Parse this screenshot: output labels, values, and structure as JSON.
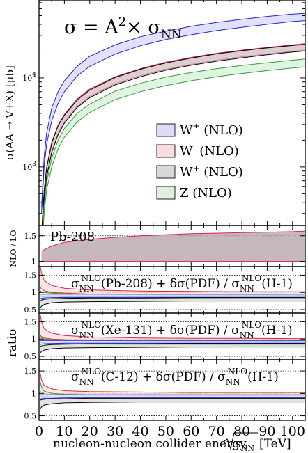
{
  "chart_data": [
    {
      "type": "area",
      "title": "σ = A²× σNN",
      "title_main": "σ = A",
      "title_sup": "2",
      "title_rest": "× σ",
      "title_sub": "NN",
      "ylabel": "σ(AA → V+X) [μb]",
      "yscale": "log",
      "ylim": [
        220,
        75000
      ],
      "xlim": [
        0,
        105
      ],
      "yticks": [
        {
          "label": "10",
          "exp": "3",
          "value": 1000
        },
        {
          "label": "10",
          "exp": "4",
          "value": 10000
        }
      ],
      "legend": {
        "position": "center-right",
        "entries": [
          {
            "label": "W± (NLO)",
            "base": "W",
            "sup": "±",
            "rest": " (NLO)",
            "fill": "#dcdcfa",
            "stroke": "#2020e0"
          },
          {
            "label": "W- (NLO)",
            "base": "W",
            "sup": "-",
            "rest": " (NLO)",
            "fill": "#fadcdc",
            "stroke": "#e02040"
          },
          {
            "label": "W+ (NLO)",
            "base": "W",
            "sup": "+",
            "rest": " (NLO)",
            "fill": "#d8d8d8",
            "stroke": "#000000"
          },
          {
            "label": "Z (NLO)",
            "base": "Z",
            "sup": "",
            "rest": " (NLO)",
            "fill": "#dcf2dc",
            "stroke": "#30a030"
          }
        ]
      },
      "series": [
        {
          "name": "W± (NLO)",
          "fill": "#dcdcfa",
          "stroke": "#2020e0",
          "fill_opacity": 0.85,
          "x": [
            1,
            2,
            3,
            5,
            7.5,
            10,
            15,
            20,
            30,
            40,
            50,
            60,
            70,
            80,
            90,
            100,
            105
          ],
          "lower": [
            300,
            1000,
            1800,
            3300,
            5200,
            7000,
            10500,
            13500,
            18500,
            23000,
            27000,
            30500,
            34000,
            37000,
            40000,
            43000,
            44000
          ],
          "upper": [
            350,
            1300,
            2400,
            4600,
            7000,
            9300,
            13500,
            17500,
            23500,
            29000,
            33500,
            38000,
            42000,
            45500,
            49000,
            52000,
            53000
          ]
        },
        {
          "name": "W- (NLO)",
          "fill": "#f0d0d6",
          "stroke": "#e02040",
          "fill_opacity": 0.85,
          "x": [
            1,
            2,
            3,
            5,
            7.5,
            10,
            15,
            20,
            30,
            40,
            50,
            60,
            70,
            80,
            90,
            100,
            105
          ],
          "lower": [
            150,
            450,
            800,
            1500,
            2400,
            3200,
            4800,
            6200,
            8600,
            10600,
            12500,
            14200,
            15800,
            17200,
            18600,
            19900,
            20500
          ],
          "upper": [
            180,
            550,
            1000,
            1900,
            2950,
            3900,
            5800,
            7500,
            10300,
            12700,
            15000,
            17000,
            18900,
            20500,
            22000,
            23500,
            24200
          ]
        },
        {
          "name": "W+ (NLO)",
          "fill": "#c8c8c8",
          "stroke": "#000000",
          "fill_opacity": 0.55,
          "x": [
            1,
            2,
            3,
            5,
            7.5,
            10,
            15,
            20,
            30,
            40,
            50,
            60,
            70,
            80,
            90,
            100,
            105
          ],
          "lower": [
            140,
            430,
            770,
            1450,
            2300,
            3100,
            4650,
            6000,
            8350,
            10300,
            12200,
            13900,
            15400,
            16800,
            18200,
            19500,
            20100
          ],
          "upper": [
            170,
            530,
            970,
            1850,
            2900,
            3800,
            5650,
            7300,
            10100,
            12500,
            14700,
            16700,
            18600,
            20200,
            21700,
            23100,
            23800
          ]
        },
        {
          "name": "Z (NLO)",
          "fill": "#dcf2dc",
          "stroke": "#30a030",
          "fill_opacity": 0.85,
          "x": [
            1,
            2,
            3,
            5,
            7.5,
            10,
            15,
            20,
            30,
            40,
            50,
            60,
            70,
            80,
            90,
            100,
            105
          ],
          "lower": [
            100,
            300,
            550,
            1000,
            1600,
            2150,
            3200,
            4100,
            5700,
            7000,
            8200,
            9300,
            10300,
            11200,
            12100,
            12900,
            13300
          ],
          "upper": [
            125,
            380,
            680,
            1250,
            2000,
            2700,
            4000,
            5100,
            7100,
            8700,
            10200,
            11500,
            12700,
            13800,
            14800,
            15800,
            16300
          ]
        }
      ]
    },
    {
      "type": "area",
      "label": "Pb-208",
      "ylabel": "NLO / LO",
      "ylim": [
        0.9,
        1.7
      ],
      "yticks": [
        {
          "label": "1",
          "value": 1
        },
        {
          "label": "1.5",
          "value": 1.5
        }
      ],
      "dotted_lines": [
        1.0,
        1.5
      ],
      "series": [
        {
          "name": "band",
          "fill": "#b0a0a8",
          "stroke": "#e02040",
          "x": [
            1,
            5,
            10,
            20,
            30,
            40,
            50,
            60,
            70,
            80,
            90,
            100,
            105
          ],
          "lower": [
            1.0,
            1.0,
            1.0,
            1.0,
            1.0,
            1.0,
            1.0,
            1.0,
            1.0,
            1.0,
            1.0,
            1.0,
            1.0
          ],
          "upper": [
            1.2,
            1.3,
            1.37,
            1.43,
            1.47,
            1.5,
            1.52,
            1.54,
            1.55,
            1.56,
            1.57,
            1.58,
            1.59
          ]
        }
      ]
    },
    {
      "type": "line",
      "label": "σNNNLO(Pb-208) + δσ(PDF) / σNNNLO(H-1)",
      "label_parts": {
        "nucleus": "(Pb-208)",
        "mid": " + δσ(PDF) / σ",
        "end": "(H-1)"
      },
      "ylabel": "ratio",
      "ylim": [
        0.4,
        1.75
      ],
      "yticks": [
        {
          "label": "0.5",
          "value": 0.5
        },
        {
          "label": "1",
          "value": 1
        },
        {
          "label": "1.5",
          "value": 1.5
        }
      ],
      "dotted_lines": [
        0.5,
        1.0,
        1.5
      ],
      "series": [
        {
          "name": "W-",
          "stroke": "#e02040",
          "fill": "#fadcdc",
          "x": [
            0.5,
            1,
            2,
            5,
            10,
            20,
            40,
            60,
            80,
            105
          ],
          "lower": [
            1.15,
            1.1,
            1.05,
            1.0,
            0.98,
            0.95,
            0.93,
            0.92,
            0.91,
            0.9
          ],
          "upper": [
            1.75,
            1.55,
            1.35,
            1.2,
            1.12,
            1.07,
            1.04,
            1.03,
            1.02,
            1.02
          ]
        },
        {
          "name": "Z",
          "stroke": "#30a030",
          "fill": "#dcf2dc",
          "x": [
            0.5,
            1,
            2,
            5,
            10,
            20,
            40,
            60,
            80,
            105
          ],
          "lower": [
            0.9,
            0.88,
            0.87,
            0.86,
            0.85,
            0.84,
            0.83,
            0.83,
            0.82,
            0.82
          ],
          "upper": [
            1.05,
            1.02,
            1.0,
            0.98,
            0.96,
            0.95,
            0.94,
            0.93,
            0.93,
            0.92
          ]
        },
        {
          "name": "W±",
          "stroke": "#2020e0",
          "fill": "#dcdcfa",
          "x": [
            0.5,
            1,
            2,
            5,
            10,
            20,
            40,
            60,
            80,
            105
          ],
          "lower": [
            0.82,
            0.83,
            0.84,
            0.85,
            0.86,
            0.86,
            0.86,
            0.86,
            0.86,
            0.86
          ],
          "upper": [
            0.95,
            0.95,
            0.95,
            0.95,
            0.95,
            0.95,
            0.95,
            0.95,
            0.95,
            0.95
          ]
        },
        {
          "name": "W+",
          "stroke": "#000000",
          "fill": "#d8d8d8",
          "x": [
            0.5,
            1,
            2,
            5,
            10,
            20,
            40,
            60,
            80,
            105
          ],
          "lower": [
            0.55,
            0.6,
            0.65,
            0.7,
            0.72,
            0.73,
            0.74,
            0.75,
            0.75,
            0.75
          ],
          "upper": [
            0.75,
            0.78,
            0.8,
            0.82,
            0.83,
            0.84,
            0.84,
            0.85,
            0.85,
            0.85
          ]
        }
      ]
    },
    {
      "type": "line",
      "label": "σNNNLO(Xe-131) + δσ(PDF) / σNNNLO(H-1)",
      "label_parts": {
        "nucleus": "(Xe-131)",
        "mid": " + δσ(PDF) / σ",
        "end": "(H-1)"
      },
      "ylabel": "ratio",
      "ylim": [
        0.4,
        1.75
      ],
      "yticks": [
        {
          "label": "0.5",
          "value": 0.5
        },
        {
          "label": "1",
          "value": 1
        },
        {
          "label": "1.5",
          "value": 1.5
        }
      ],
      "dotted_lines": [
        0.5,
        1.0,
        1.5
      ],
      "series": [
        {
          "name": "W-",
          "stroke": "#e02040",
          "fill": "#fadcdc",
          "x": [
            0.5,
            1,
            2,
            5,
            10,
            20,
            40,
            60,
            80,
            105
          ],
          "lower": [
            1.1,
            1.07,
            1.03,
            1.0,
            0.98,
            0.95,
            0.93,
            0.92,
            0.91,
            0.9
          ],
          "upper": [
            1.7,
            1.5,
            1.3,
            1.17,
            1.1,
            1.06,
            1.03,
            1.02,
            1.02,
            1.01
          ]
        },
        {
          "name": "Z",
          "stroke": "#30a030",
          "fill": "#dcf2dc",
          "x": [
            0.5,
            1,
            2,
            5,
            10,
            20,
            40,
            60,
            80,
            105
          ],
          "lower": [
            0.9,
            0.89,
            0.88,
            0.87,
            0.86,
            0.85,
            0.84,
            0.84,
            0.83,
            0.83
          ],
          "upper": [
            1.06,
            1.03,
            1.0,
            0.98,
            0.97,
            0.96,
            0.95,
            0.94,
            0.94,
            0.93
          ]
        },
        {
          "name": "W±",
          "stroke": "#2020e0",
          "fill": "#dcdcfa",
          "x": [
            0.5,
            1,
            2,
            5,
            10,
            20,
            40,
            60,
            80,
            105
          ],
          "lower": [
            0.84,
            0.85,
            0.86,
            0.87,
            0.88,
            0.88,
            0.88,
            0.88,
            0.88,
            0.88
          ],
          "upper": [
            0.96,
            0.96,
            0.96,
            0.96,
            0.96,
            0.96,
            0.96,
            0.96,
            0.96,
            0.96
          ]
        },
        {
          "name": "W+",
          "stroke": "#000000",
          "fill": "#d8d8d8",
          "x": [
            0.5,
            1,
            2,
            5,
            10,
            20,
            40,
            60,
            80,
            105
          ],
          "lower": [
            0.6,
            0.64,
            0.68,
            0.72,
            0.74,
            0.75,
            0.76,
            0.77,
            0.77,
            0.77
          ],
          "upper": [
            0.78,
            0.8,
            0.82,
            0.84,
            0.85,
            0.86,
            0.86,
            0.87,
            0.87,
            0.87
          ]
        }
      ]
    },
    {
      "type": "line",
      "label": "σNNNLO(C-12) + δσ(PDF) / σNNNLO(H-1)",
      "label_parts": {
        "nucleus": "(C-12)",
        "mid": " + δσ(PDF) / σ",
        "end": "(H-1)"
      },
      "ylabel": "ratio",
      "ylim": [
        0.4,
        1.75
      ],
      "yticks": [
        {
          "label": "0.5",
          "value": 0.5
        },
        {
          "label": "1",
          "value": 1
        },
        {
          "label": "1.5",
          "value": 1.5
        }
      ],
      "dotted_lines": [
        0.5,
        1.0,
        1.5
      ],
      "series": [
        {
          "name": "W-",
          "stroke": "#e02040",
          "fill": "#fadcdc",
          "x": [
            0.5,
            1,
            2,
            5,
            10,
            20,
            40,
            60,
            80,
            105
          ],
          "lower": [
            1.05,
            1.03,
            1.0,
            0.98,
            0.97,
            0.96,
            0.95,
            0.95,
            0.95,
            0.95
          ],
          "upper": [
            1.45,
            1.3,
            1.18,
            1.1,
            1.06,
            1.04,
            1.03,
            1.02,
            1.02,
            1.02
          ]
        },
        {
          "name": "Z",
          "stroke": "#30a030",
          "fill": "#dcf2dc",
          "x": [
            0.5,
            1,
            2,
            5,
            10,
            20,
            40,
            60,
            80,
            105
          ],
          "lower": [
            0.95,
            0.94,
            0.93,
            0.92,
            0.92,
            0.91,
            0.91,
            0.91,
            0.91,
            0.91
          ],
          "upper": [
            1.25,
            1.15,
            1.05,
            1.0,
            0.98,
            0.97,
            0.96,
            0.96,
            0.96,
            0.96
          ]
        },
        {
          "name": "W±",
          "stroke": "#2020e0",
          "fill": "#dcdcfa",
          "x": [
            0.5,
            1,
            2,
            5,
            10,
            20,
            40,
            60,
            80,
            105
          ],
          "lower": [
            0.88,
            0.88,
            0.89,
            0.89,
            0.9,
            0.9,
            0.9,
            0.9,
            0.9,
            0.9
          ],
          "upper": [
            0.97,
            0.97,
            0.97,
            0.97,
            0.97,
            0.97,
            0.97,
            0.97,
            0.97,
            0.97
          ]
        },
        {
          "name": "W+",
          "stroke": "#000000",
          "fill": "#d8d8d8",
          "x": [
            0.5,
            1,
            2,
            5,
            10,
            20,
            40,
            60,
            80,
            105
          ],
          "lower": [
            0.65,
            0.7,
            0.74,
            0.77,
            0.79,
            0.8,
            0.81,
            0.81,
            0.81,
            0.81
          ],
          "upper": [
            0.85,
            0.86,
            0.87,
            0.88,
            0.88,
            0.89,
            0.89,
            0.89,
            0.89,
            0.89
          ]
        }
      ]
    }
  ],
  "axis": {
    "x_ticks": [
      0,
      10,
      20,
      30,
      40,
      50,
      60,
      70,
      80,
      90,
      100
    ],
    "xlabel_prefix": "nucleon-nucleon collider energy, ",
    "xlabel_root": "s",
    "xlabel_root_sub": "NN",
    "xlabel_suffix": " [TeV]",
    "ratio_common_label": "ratio",
    "sigma": "σ",
    "nn_sub": "NN",
    "nlo_sup": "NLO"
  }
}
